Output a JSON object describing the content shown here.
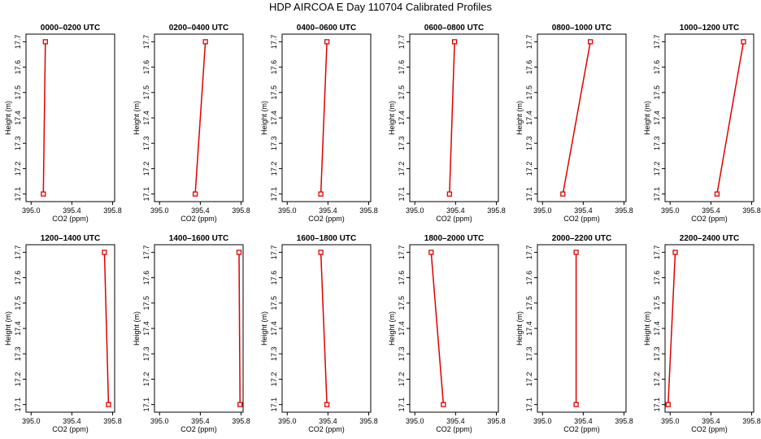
{
  "title": "HDP AIRCOA E  Day 110704  Calibrated Profiles",
  "chart_data": {
    "type": "line",
    "xlabel": "CO2 (ppm)",
    "ylabel": "Height (m)",
    "xlim": [
      394.95,
      395.82
    ],
    "ylim": [
      17.07,
      17.73
    ],
    "xticks": [
      "395.0",
      "395.4",
      "395.8"
    ],
    "xtick_values": [
      395.0,
      395.4,
      395.8
    ],
    "yticks": [
      "17.1",
      "17.2",
      "17.3",
      "17.4",
      "17.5",
      "17.6",
      "17.7"
    ],
    "ytick_values": [
      17.1,
      17.2,
      17.3,
      17.4,
      17.5,
      17.6,
      17.7
    ],
    "panels": [
      {
        "title": "0000–0200 UTC",
        "points": [
          {
            "x": 395.12,
            "y": 17.1
          },
          {
            "x": 395.14,
            "y": 17.7
          }
        ]
      },
      {
        "title": "0200–0400 UTC",
        "points": [
          {
            "x": 395.35,
            "y": 17.1
          },
          {
            "x": 395.45,
            "y": 17.7
          }
        ]
      },
      {
        "title": "0400–0600 UTC",
        "points": [
          {
            "x": 395.33,
            "y": 17.1
          },
          {
            "x": 395.39,
            "y": 17.7
          }
        ]
      },
      {
        "title": "0600–0800 UTC",
        "points": [
          {
            "x": 395.34,
            "y": 17.1
          },
          {
            "x": 395.39,
            "y": 17.7
          }
        ]
      },
      {
        "title": "0800–1000 UTC",
        "points": [
          {
            "x": 395.2,
            "y": 17.1
          },
          {
            "x": 395.47,
            "y": 17.7
          }
        ]
      },
      {
        "title": "1000–1200 UTC",
        "points": [
          {
            "x": 395.46,
            "y": 17.1
          },
          {
            "x": 395.72,
            "y": 17.7
          }
        ]
      },
      {
        "title": "1200–1400 UTC",
        "points": [
          {
            "x": 395.76,
            "y": 17.1
          },
          {
            "x": 395.72,
            "y": 17.7
          }
        ]
      },
      {
        "title": "1400–1600 UTC",
        "points": [
          {
            "x": 395.79,
            "y": 17.1
          },
          {
            "x": 395.78,
            "y": 17.7
          }
        ]
      },
      {
        "title": "1600–1800 UTC",
        "points": [
          {
            "x": 395.39,
            "y": 17.1
          },
          {
            "x": 395.33,
            "y": 17.7
          }
        ]
      },
      {
        "title": "1800–2000 UTC",
        "points": [
          {
            "x": 395.28,
            "y": 17.1
          },
          {
            "x": 395.16,
            "y": 17.7
          }
        ]
      },
      {
        "title": "2000–2200 UTC",
        "points": [
          {
            "x": 395.33,
            "y": 17.1
          },
          {
            "x": 395.33,
            "y": 17.7
          }
        ]
      },
      {
        "title": "2200–2400 UTC",
        "points": [
          {
            "x": 394.98,
            "y": 17.1
          },
          {
            "x": 395.05,
            "y": 17.7
          }
        ]
      }
    ]
  },
  "colors": {
    "series": "#dd0000",
    "axes": "#000000"
  }
}
